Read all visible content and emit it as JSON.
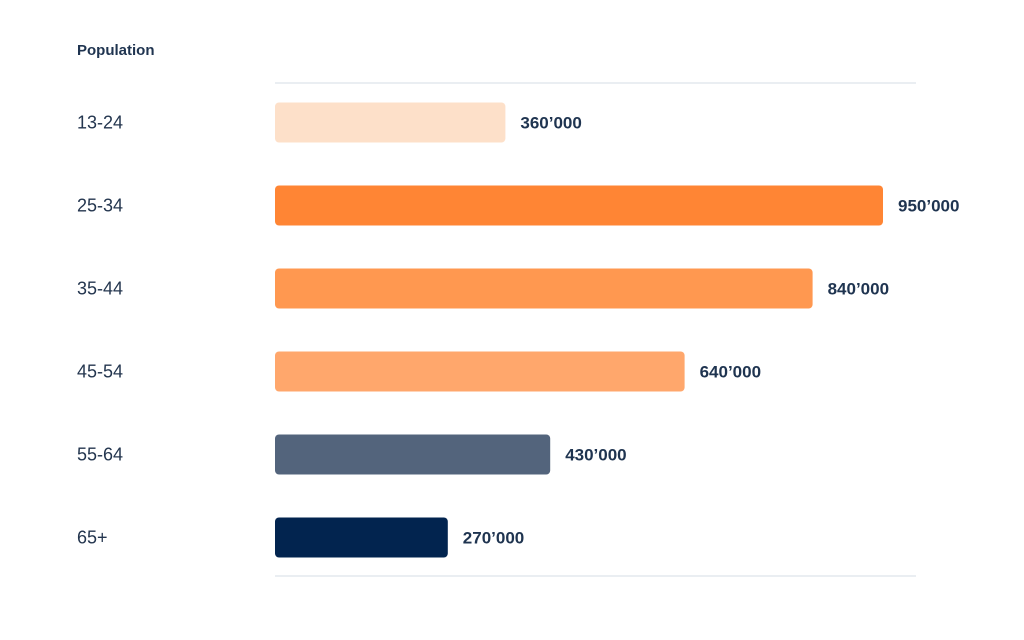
{
  "chart_data": {
    "type": "bar",
    "orientation": "horizontal",
    "title": "Population",
    "categories": [
      "13-24",
      "25-34",
      "35-44",
      "45-54",
      "55-64",
      "65+"
    ],
    "values": [
      360000,
      950000,
      840000,
      640000,
      430000,
      270000
    ],
    "value_labels": [
      "360’000",
      "950’000",
      "840’000",
      "640’000",
      "430’000",
      "270’000"
    ],
    "colors": [
      "#fde0c9",
      "#ff8534",
      "#ff9850",
      "#ffa76c",
      "#53647c",
      "#02244f"
    ],
    "xlim": [
      0,
      1000000
    ],
    "grid": false,
    "legend": "none"
  }
}
